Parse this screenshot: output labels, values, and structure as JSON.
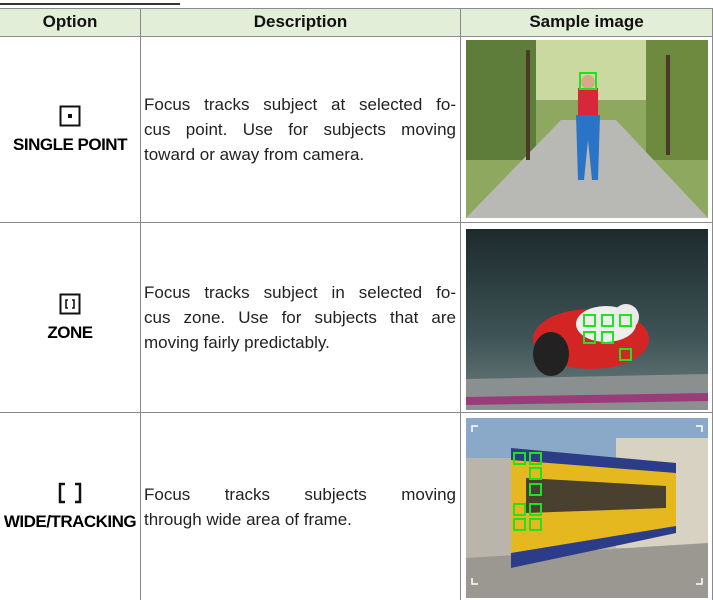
{
  "table": {
    "header": [
      "Option",
      "Description",
      "Sample image"
    ],
    "rows": [
      {
        "option": "SINGLE POINT",
        "description_lines": [
          "Focus tracks subject at selected fo-",
          "cus point. Use for subjects moving",
          "toward or away from camera."
        ]
      },
      {
        "option": "ZONE",
        "description_lines": [
          "Focus tracks subject in selected fo-",
          "cus zone. Use for subjects that are",
          "moving fairly predictably."
        ]
      },
      {
        "option": "WIDE/TRACKING",
        "description_lines": [
          "Focus tracks subjects moving",
          "through wide area of frame."
        ]
      }
    ]
  }
}
